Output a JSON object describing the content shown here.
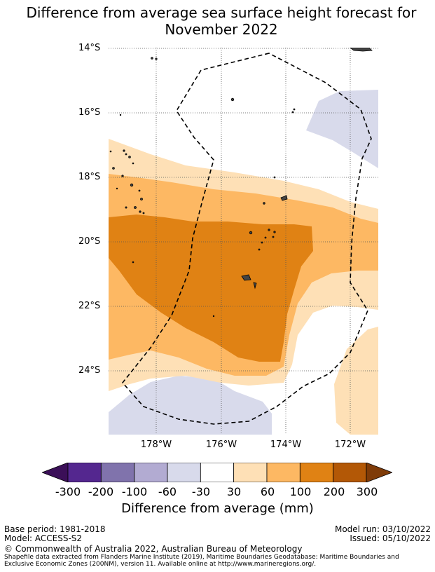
{
  "title_line1": "Difference from average sea surface height forecast for",
  "title_line2": "November 2022",
  "lat_labels": [
    "14°S",
    "16°S",
    "18°S",
    "20°S",
    "22°S",
    "24°S"
  ],
  "lon_labels": [
    "178°W",
    "176°W",
    "174°W",
    "172°W"
  ],
  "colorbar": {
    "ticks": [
      "-300",
      "-200",
      "-100",
      "-60",
      "-30",
      "30",
      "60",
      "100",
      "200",
      "300"
    ],
    "colors": [
      "#3b0f58",
      "#54278f",
      "#8073ac",
      "#b2abd2",
      "#d8daeb",
      "#ffffff",
      "#fee0b6",
      "#fdb863",
      "#e08214",
      "#b35806",
      "#7f3b08"
    ],
    "title": "Difference from average (mm)"
  },
  "footer": {
    "base_period": "Base period: 1981-2018",
    "model": "Model: ACCESS-S2",
    "model_run": "Model run: 03/10/2022",
    "issued": "Issued: 05/10/2022",
    "copyright": "© Commonwealth of Australia 2022, Australian Bureau of Meteorology",
    "shapefile_line1": "Shapefile data extracted from Flanders Marine Institute (2019), Maritime Boundaries Geodatabase: Maritime Boundaries and",
    "shapefile_line2": "Exclusive Economic Zones (200NM), version 11. Available online at http://www.marineregions.org/."
  }
}
